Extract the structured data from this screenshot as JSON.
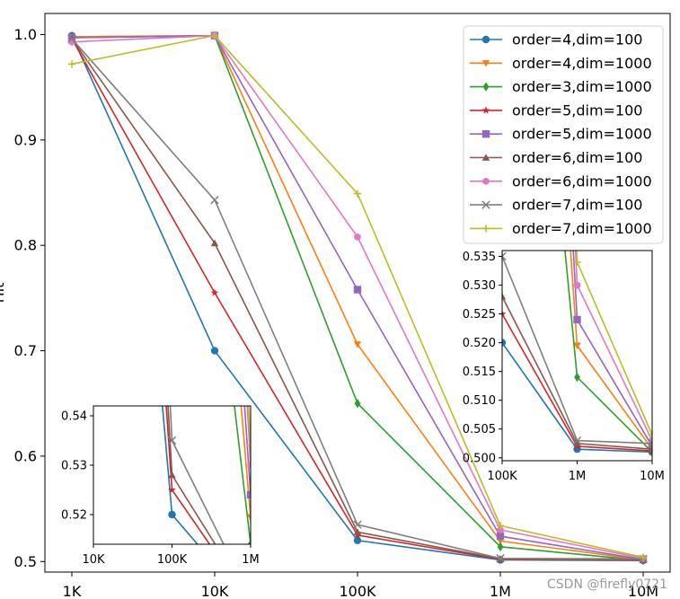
{
  "chart_data": {
    "type": "line",
    "x_scale": "log",
    "categories": [
      "1K",
      "10K",
      "100K",
      "1M",
      "10M"
    ],
    "x": [
      1000,
      10000,
      100000,
      1000000,
      10000000
    ],
    "ylabel": "Hit",
    "ylim": [
      0.49,
      1.02
    ],
    "yticks": [
      0.5,
      0.6,
      0.7,
      0.8,
      0.9,
      1.0
    ],
    "grid": false,
    "legend_position": "top-right",
    "series": [
      {
        "name": "order=4,dim=100",
        "color": "#1f77b4",
        "marker": "circle",
        "values": [
          0.999,
          0.7,
          0.52,
          0.5015,
          0.501
        ]
      },
      {
        "name": "order=4,dim=1000",
        "color": "#ff7f0e",
        "marker": "triangle-down",
        "values": [
          0.998,
          0.999,
          0.706,
          0.5195,
          0.5015
        ]
      },
      {
        "name": "order=3,dim=1000",
        "color": "#2ca02c",
        "marker": "diamond",
        "values": [
          0.997,
          0.999,
          0.65,
          0.514,
          0.501
        ]
      },
      {
        "name": "order=5,dim=100",
        "color": "#d62728",
        "marker": "star",
        "values": [
          0.996,
          0.755,
          0.525,
          0.502,
          0.5012
        ]
      },
      {
        "name": "order=5,dim=1000",
        "color": "#9467bd",
        "marker": "square",
        "values": [
          0.997,
          0.999,
          0.758,
          0.524,
          0.502
        ]
      },
      {
        "name": "order=6,dim=100",
        "color": "#8c564b",
        "marker": "triangle-up",
        "values": [
          0.996,
          0.802,
          0.528,
          0.5025,
          0.5015
        ]
      },
      {
        "name": "order=6,dim=1000",
        "color": "#e377c2",
        "marker": "hexagon",
        "values": [
          0.993,
          0.999,
          0.808,
          0.53,
          0.503
        ]
      },
      {
        "name": "order=7,dim=100",
        "color": "#7f7f7f",
        "marker": "x",
        "values": [
          0.996,
          0.843,
          0.535,
          0.503,
          0.5025
        ]
      },
      {
        "name": "order=7,dim=1000",
        "color": "#bcbd22",
        "marker": "plus",
        "values": [
          0.972,
          0.999,
          0.849,
          0.534,
          0.504
        ]
      }
    ],
    "insets": [
      {
        "xlim": [
          10000,
          1000000
        ],
        "xticks": [
          "10K",
          "100K",
          "1M"
        ],
        "ylim": [
          0.514,
          0.542
        ],
        "yticks": [
          "0.52",
          "0.53",
          "0.54"
        ],
        "ytick_values": [
          0.52,
          0.53,
          0.54
        ],
        "zoom_x": [
          70000,
          150000
        ],
        "zoom_y": [
          0.509,
          0.545
        ]
      },
      {
        "xlim": [
          100000,
          10000000
        ],
        "xticks": [
          "100K",
          "1M",
          "10M"
        ],
        "ylim": [
          0.4995,
          0.536
        ],
        "yticks": [
          "0.500",
          "0.505",
          "0.510",
          "0.515",
          "0.520",
          "0.525",
          "0.530",
          "0.535"
        ],
        "ytick_values": [
          0.5,
          0.505,
          0.51,
          0.515,
          0.52,
          0.525,
          0.53,
          0.535
        ],
        "zoom_x": [
          700000,
          1400000
        ],
        "zoom_y": [
          0.4985,
          0.5365
        ]
      }
    ]
  },
  "watermark": "CSDN @firefly0721"
}
